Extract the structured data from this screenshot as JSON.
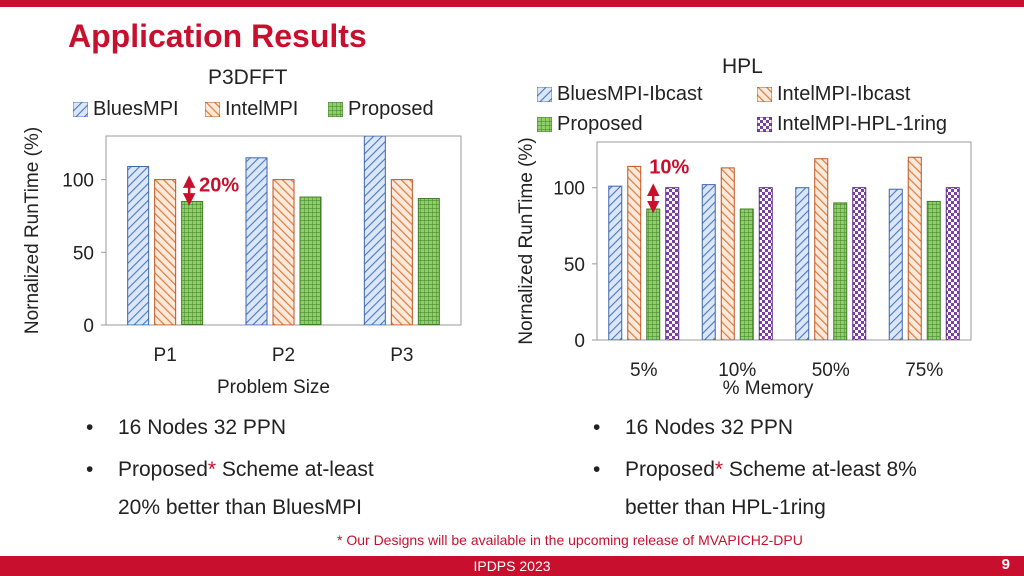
{
  "slide": {
    "title": "Application Results",
    "footnote": "* Our Designs will be available in the upcoming release of MVAPICH2-DPU",
    "footer": "IPDPS 2023",
    "page_number": "9",
    "accent_color": "#c8102e"
  },
  "left_bullets": [
    {
      "text": "16 Nodes 32 PPN"
    },
    {
      "pre": "Proposed",
      "star": "*",
      "post": " Scheme at-least",
      "line2": "20% better than BluesMPI"
    }
  ],
  "right_bullets": [
    {
      "text": "16 Nodes 32 PPN"
    },
    {
      "pre": "Proposed",
      "star": "*",
      "post": " Scheme at-least 8%",
      "line2": "better than HPL-1ring"
    }
  ],
  "chart_data": [
    {
      "type": "bar",
      "title": "P3DFFT",
      "xlabel": "Problem Size",
      "ylabel": "Nornalized RunTime (%)",
      "categories": [
        "P1",
        "P2",
        "P3"
      ],
      "yticks": [
        0,
        50,
        100
      ],
      "ylim": [
        0,
        130
      ],
      "series": [
        {
          "name": "BluesMPI",
          "values": [
            109,
            115,
            130
          ],
          "pattern": "hatch-right",
          "color": "#4a78c2"
        },
        {
          "name": "IntelMPI",
          "values": [
            100,
            100,
            100
          ],
          "pattern": "hatch-left",
          "color": "#e07b39"
        },
        {
          "name": "Proposed",
          "values": [
            85,
            88,
            87
          ],
          "pattern": "grid",
          "color": "#5fa83f"
        }
      ],
      "annotation": {
        "text": "20%",
        "category": 0,
        "from": 100,
        "to": 85
      },
      "legend": "top",
      "grid": false
    },
    {
      "type": "bar",
      "title": "HPL",
      "xlabel": "%  Memory",
      "ylabel": "Nornalized RunTime (%)",
      "categories": [
        "5%",
        "10%",
        "50%",
        "75%"
      ],
      "yticks": [
        0,
        50,
        100
      ],
      "ylim": [
        0,
        130
      ],
      "series": [
        {
          "name": "BluesMPI-Ibcast",
          "values": [
            101,
            102,
            100,
            99
          ],
          "pattern": "hatch-right",
          "color": "#4a78c2"
        },
        {
          "name": "IntelMPI-Ibcast",
          "values": [
            114,
            113,
            119,
            120
          ],
          "pattern": "hatch-left",
          "color": "#e07b39"
        },
        {
          "name": "Proposed",
          "values": [
            86,
            86,
            90,
            91
          ],
          "pattern": "grid",
          "color": "#5fa83f"
        },
        {
          "name": "IntelMPI-HPL-1ring",
          "values": [
            100,
            100,
            100,
            100
          ],
          "pattern": "checker",
          "color": "#7b3fa8"
        }
      ],
      "annotation": {
        "text": "10%",
        "category": 0,
        "from": 100,
        "to": 86
      },
      "legend": "top",
      "grid": false
    }
  ]
}
